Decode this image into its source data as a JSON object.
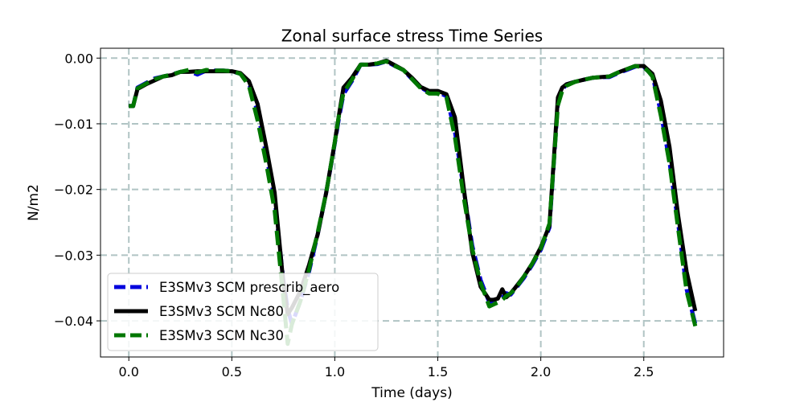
{
  "chart_data": {
    "type": "line",
    "title": "Zonal surface stress Time Series",
    "xlabel": "Time (days)",
    "ylabel": "N/m2",
    "xlim": [
      -0.1375,
      2.8875
    ],
    "ylim": [
      -0.0455,
      0.0015
    ],
    "xticks": [
      0.0,
      0.5,
      1.0,
      1.5,
      2.0,
      2.5
    ],
    "xtick_labels": [
      "0.0",
      "0.5",
      "1.0",
      "1.5",
      "2.0",
      "2.5"
    ],
    "yticks": [
      0.0,
      -0.01,
      -0.02,
      -0.03,
      -0.04
    ],
    "ytick_labels": [
      "0.00",
      "−0.01",
      "−0.02",
      "−0.03",
      "−0.04"
    ],
    "grid": true,
    "legend_position": "lower-left",
    "x": [
      0.0,
      0.021,
      0.042,
      0.083,
      0.125,
      0.167,
      0.208,
      0.25,
      0.292,
      0.333,
      0.375,
      0.417,
      0.458,
      0.5,
      0.542,
      0.583,
      0.625,
      0.667,
      0.708,
      0.75,
      0.771,
      0.792,
      0.833,
      0.875,
      0.917,
      0.958,
      1.0,
      1.021,
      1.042,
      1.083,
      1.125,
      1.167,
      1.208,
      1.25,
      1.292,
      1.333,
      1.375,
      1.417,
      1.458,
      1.5,
      1.542,
      1.583,
      1.625,
      1.667,
      1.708,
      1.75,
      1.771,
      1.792,
      1.813,
      1.833,
      1.854,
      1.875,
      1.917,
      1.958,
      2.0,
      2.042,
      2.083,
      2.104,
      2.125,
      2.167,
      2.208,
      2.25,
      2.292,
      2.333,
      2.375,
      2.417,
      2.458,
      2.5,
      2.521,
      2.542,
      2.583,
      2.625,
      2.667,
      2.708,
      2.75
    ],
    "series": [
      {
        "name": "E3SMv3 SCM prescrib_aero",
        "color": "#0000dd",
        "style": "dashed",
        "values": [
          -0.0073,
          -0.0073,
          -0.0045,
          -0.0038,
          -0.0031,
          -0.0028,
          -0.0025,
          -0.0021,
          -0.002,
          -0.0025,
          -0.0019,
          -0.0019,
          -0.0019,
          -0.002,
          -0.0024,
          -0.0038,
          -0.0082,
          -0.0148,
          -0.0215,
          -0.0338,
          -0.0382,
          -0.0405,
          -0.037,
          -0.0325,
          -0.0268,
          -0.0205,
          -0.013,
          -0.009,
          -0.0055,
          -0.0035,
          -0.001,
          -0.001,
          -0.0009,
          -0.0005,
          -0.0012,
          -0.0018,
          -0.0032,
          -0.0045,
          -0.0052,
          -0.0052,
          -0.0058,
          -0.0112,
          -0.0198,
          -0.0285,
          -0.0338,
          -0.0372,
          -0.0368,
          -0.0368,
          -0.0365,
          -0.0358,
          -0.036,
          -0.0352,
          -0.0335,
          -0.0315,
          -0.0292,
          -0.0258,
          -0.0068,
          -0.0048,
          -0.004,
          -0.0036,
          -0.0033,
          -0.003,
          -0.0029,
          -0.0029,
          -0.0023,
          -0.0018,
          -0.0013,
          -0.0013,
          -0.002,
          -0.0026,
          -0.0083,
          -0.0158,
          -0.0252,
          -0.0352,
          -0.0405
        ]
      },
      {
        "name": "E3SMv3 SCM Nc80",
        "color": "#000000",
        "style": "solid",
        "values": [
          -0.0073,
          -0.0073,
          -0.0047,
          -0.004,
          -0.0034,
          -0.0028,
          -0.0026,
          -0.0021,
          -0.0021,
          -0.002,
          -0.002,
          -0.002,
          -0.002,
          -0.002,
          -0.0023,
          -0.0035,
          -0.007,
          -0.0135,
          -0.0205,
          -0.0342,
          -0.039,
          -0.038,
          -0.0355,
          -0.0315,
          -0.0268,
          -0.0205,
          -0.0128,
          -0.0085,
          -0.0045,
          -0.003,
          -0.001,
          -0.001,
          -0.0008,
          -0.0004,
          -0.0011,
          -0.0018,
          -0.003,
          -0.0044,
          -0.005,
          -0.005,
          -0.0055,
          -0.009,
          -0.0195,
          -0.0295,
          -0.0348,
          -0.0368,
          -0.0368,
          -0.0366,
          -0.0352,
          -0.0364,
          -0.0358,
          -0.035,
          -0.0333,
          -0.0313,
          -0.0288,
          -0.0255,
          -0.006,
          -0.0045,
          -0.004,
          -0.0036,
          -0.0033,
          -0.003,
          -0.0029,
          -0.0028,
          -0.0022,
          -0.0017,
          -0.0012,
          -0.0012,
          -0.0018,
          -0.0024,
          -0.0065,
          -0.0135,
          -0.024,
          -0.0325,
          -0.0385
        ]
      },
      {
        "name": "E3SMv3 SCM Nc30",
        "color": "#007700",
        "style": "dashed",
        "values": [
          -0.0073,
          -0.0073,
          -0.0046,
          -0.0039,
          -0.0032,
          -0.0028,
          -0.0025,
          -0.0021,
          -0.0018,
          -0.0022,
          -0.0018,
          -0.0019,
          -0.0019,
          -0.002,
          -0.0024,
          -0.0042,
          -0.0095,
          -0.016,
          -0.0232,
          -0.0365,
          -0.0435,
          -0.0405,
          -0.037,
          -0.0322,
          -0.0265,
          -0.0205,
          -0.0128,
          -0.0085,
          -0.0053,
          -0.0033,
          -0.001,
          -0.001,
          -0.0008,
          -0.0005,
          -0.0012,
          -0.0018,
          -0.0032,
          -0.0046,
          -0.0054,
          -0.0054,
          -0.006,
          -0.012,
          -0.021,
          -0.029,
          -0.0342,
          -0.0378,
          -0.0375,
          -0.0372,
          -0.0368,
          -0.0362,
          -0.0358,
          -0.0352,
          -0.0333,
          -0.0313,
          -0.029,
          -0.0252,
          -0.0072,
          -0.005,
          -0.0042,
          -0.0036,
          -0.0033,
          -0.003,
          -0.0029,
          -0.0028,
          -0.0022,
          -0.0017,
          -0.0012,
          -0.0014,
          -0.002,
          -0.0028,
          -0.0088,
          -0.016,
          -0.026,
          -0.0355,
          -0.0408
        ]
      }
    ]
  }
}
